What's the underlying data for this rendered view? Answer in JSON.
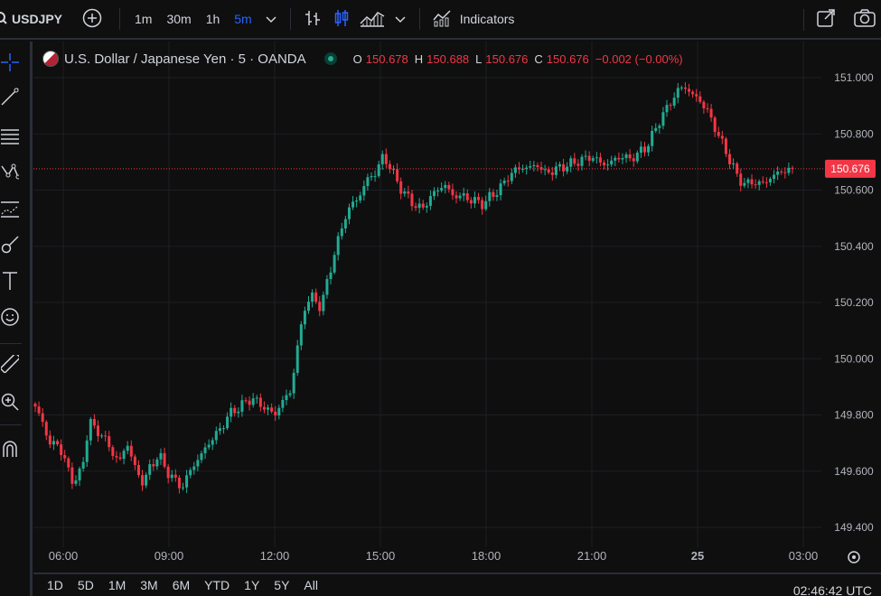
{
  "toolbar": {
    "symbol": "USDJPY",
    "timeframes": [
      "1m",
      "30m",
      "1h",
      "5m"
    ],
    "active_timeframe": "5m",
    "indicators_label": "Indicators"
  },
  "legend": {
    "title": "U.S. Dollar / Japanese Yen · 5 · OANDA",
    "o_label": "O",
    "o_value": "150.678",
    "h_label": "H",
    "h_value": "150.688",
    "l_label": "L",
    "l_value": "150.676",
    "c_label": "C",
    "c_value": "150.676",
    "change": "−0.002 (−0.00%)"
  },
  "price_axis": {
    "labels": [
      "151.000",
      "150.800",
      "150.600",
      "150.400",
      "150.200",
      "150.000",
      "149.800",
      "149.600",
      "149.400"
    ],
    "current_price": "150.676"
  },
  "time_axis": {
    "labels": [
      "06:00",
      "09:00",
      "12:00",
      "15:00",
      "18:00",
      "21:00",
      "25",
      "03:00"
    ]
  },
  "bottom": {
    "ranges": [
      "1D",
      "5D",
      "1M",
      "3M",
      "6M",
      "YTD",
      "1Y",
      "5Y",
      "All"
    ],
    "clock": "02:46:42 UTC"
  },
  "colors": {
    "up": "#22ab94",
    "down": "#f23645",
    "active": "#2962ff",
    "price_tag": "#f23645"
  },
  "chart_data": {
    "type": "candlestick",
    "symbol": "USDJPY",
    "interval": "5",
    "x": [
      "06:00",
      "09:00",
      "12:00",
      "15:00",
      "18:00",
      "21:00",
      "25",
      "03:00"
    ],
    "close_path": [
      149.83,
      149.77,
      149.69,
      149.7,
      149.62,
      149.56,
      149.6,
      149.78,
      149.74,
      149.72,
      149.66,
      149.64,
      149.7,
      149.6,
      149.56,
      149.62,
      149.66,
      149.6,
      149.57,
      149.54,
      149.6,
      149.64,
      149.68,
      149.72,
      149.75,
      149.8,
      149.82,
      149.84,
      149.86,
      149.84,
      149.82,
      149.8,
      149.85,
      149.88,
      150.05,
      150.2,
      150.22,
      150.18,
      150.3,
      150.4,
      150.5,
      150.55,
      150.58,
      150.64,
      150.66,
      150.72,
      150.68,
      150.62,
      150.58,
      150.55,
      150.53,
      150.57,
      150.6,
      150.62,
      150.58,
      150.58,
      150.57,
      150.56,
      150.55,
      150.58,
      150.6,
      150.64,
      150.67,
      150.68,
      150.68,
      150.69,
      150.66,
      150.67,
      150.68,
      150.69,
      150.7,
      150.71,
      150.72,
      150.7,
      150.69,
      150.71,
      150.72,
      150.71,
      150.73,
      150.75,
      150.8,
      150.86,
      150.9,
      150.95,
      150.97,
      150.94,
      150.92,
      150.88,
      150.82,
      150.76,
      150.7,
      150.64,
      150.62,
      150.63,
      150.62,
      150.64,
      150.66,
      150.67,
      150.676
    ],
    "price_range": [
      149.42,
      151.02
    ],
    "last": 150.676
  }
}
